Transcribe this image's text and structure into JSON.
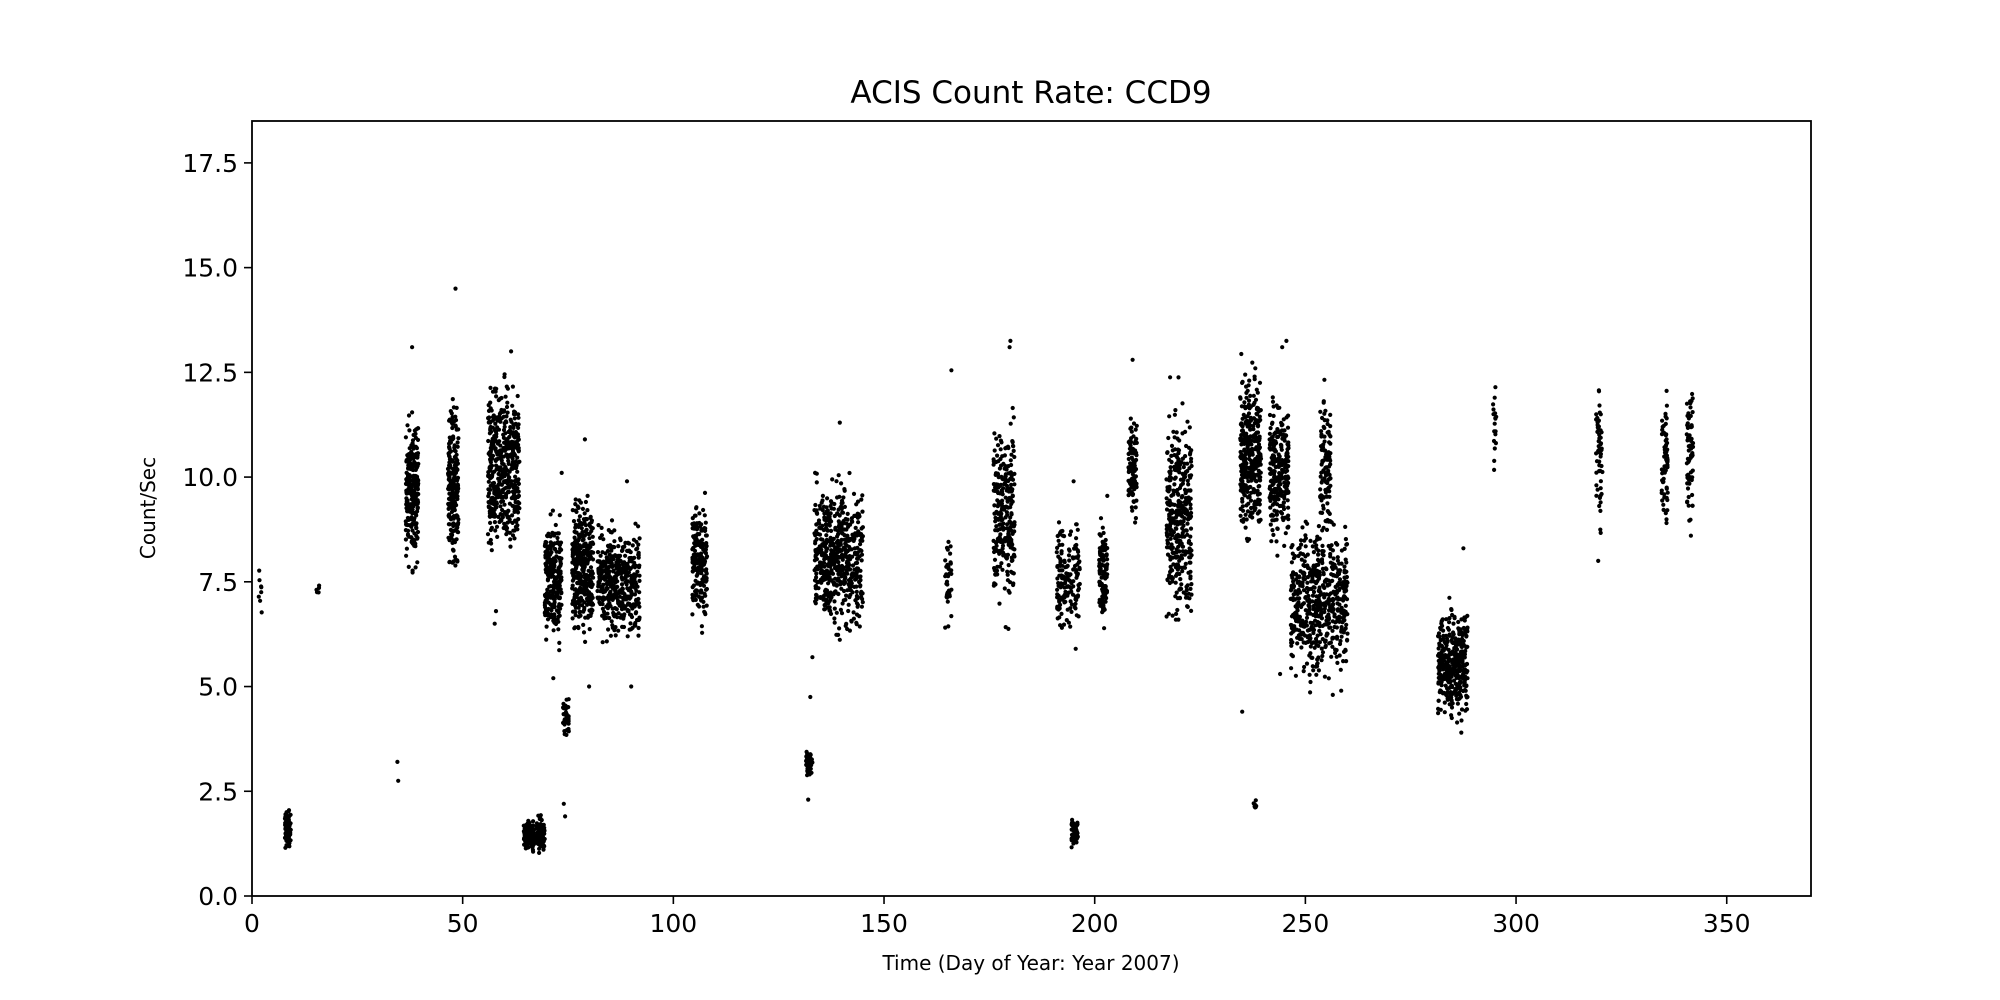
{
  "chart_data": {
    "type": "scatter",
    "title": "ACIS Count Rate: CCD9",
    "xlabel": "Time (Day of Year: Year 2007)",
    "ylabel": "Count/Sec",
    "xlim": [
      0,
      370
    ],
    "ylim": [
      0,
      18.5
    ],
    "xticks": [
      0,
      50,
      100,
      150,
      200,
      250,
      300,
      350
    ],
    "yticks": [
      0.0,
      2.5,
      5.0,
      7.5,
      10.0,
      12.5,
      15.0,
      17.5
    ],
    "xtick_labels": [
      "0",
      "50",
      "100",
      "150",
      "200",
      "250",
      "300",
      "350"
    ],
    "ytick_labels": [
      "0.0",
      "2.5",
      "5.0",
      "7.5",
      "10.0",
      "12.5",
      "15.0",
      "17.5"
    ],
    "grid": false,
    "marker_color": "#000000",
    "clusters": [
      {
        "x": [
          1.5,
          2.5
        ],
        "y": [
          6.1,
          8.1
        ],
        "n": 8
      },
      {
        "x": [
          7.8,
          9.2
        ],
        "y": [
          1.0,
          2.2
        ],
        "n": 90
      },
      {
        "x": [
          15.0,
          16.0
        ],
        "y": [
          7.2,
          7.5
        ],
        "n": 5
      },
      {
        "x": [
          36.5,
          39.5
        ],
        "y": [
          7.4,
          12.0
        ],
        "n": 230
      },
      {
        "x": [
          46.5,
          49.0
        ],
        "y": [
          7.3,
          12.2
        ],
        "n": 230
      },
      {
        "x": [
          56.0,
          63.5
        ],
        "y": [
          7.5,
          12.8
        ],
        "n": 480
      },
      {
        "x": [
          64.5,
          67.0
        ],
        "y": [
          0.9,
          2.0
        ],
        "n": 100
      },
      {
        "x": [
          67.5,
          69.5
        ],
        "y": [
          0.8,
          2.1
        ],
        "n": 80
      },
      {
        "x": [
          69.5,
          73.5
        ],
        "y": [
          5.6,
          9.6
        ],
        "n": 230
      },
      {
        "x": [
          73.8,
          75.2
        ],
        "y": [
          3.7,
          4.8
        ],
        "n": 40
      },
      {
        "x": [
          76.0,
          81.0
        ],
        "y": [
          5.8,
          10.0
        ],
        "n": 330
      },
      {
        "x": [
          82.0,
          92.0
        ],
        "y": [
          5.7,
          9.2
        ],
        "n": 420
      },
      {
        "x": [
          104.5,
          108.0
        ],
        "y": [
          6.0,
          10.0
        ],
        "n": 180
      },
      {
        "x": [
          131.5,
          133.0
        ],
        "y": [
          2.7,
          3.6
        ],
        "n": 60
      },
      {
        "x": [
          133.5,
          145.0
        ],
        "y": [
          5.8,
          10.4
        ],
        "n": 560
      },
      {
        "x": [
          164.5,
          166.0
        ],
        "y": [
          6.2,
          8.8
        ],
        "n": 35
      },
      {
        "x": [
          176.0,
          181.0
        ],
        "y": [
          6.2,
          12.0
        ],
        "n": 260
      },
      {
        "x": [
          191.0,
          196.5
        ],
        "y": [
          5.9,
          9.2
        ],
        "n": 160
      },
      {
        "x": [
          194.5,
          196.0
        ],
        "y": [
          1.0,
          2.1
        ],
        "n": 60
      },
      {
        "x": [
          201.0,
          203.0
        ],
        "y": [
          6.1,
          9.5
        ],
        "n": 110
      },
      {
        "x": [
          208.0,
          210.0
        ],
        "y": [
          8.4,
          12.0
        ],
        "n": 110
      },
      {
        "x": [
          217.0,
          223.0
        ],
        "y": [
          5.8,
          12.5
        ],
        "n": 360
      },
      {
        "x": [
          234.5,
          239.5
        ],
        "y": [
          8.0,
          13.2
        ],
        "n": 330
      },
      {
        "x": [
          237.5,
          238.5
        ],
        "y": [
          2.0,
          2.3
        ],
        "n": 8
      },
      {
        "x": [
          241.5,
          246.0
        ],
        "y": [
          7.9,
          12.2
        ],
        "n": 260
      },
      {
        "x": [
          246.5,
          260.0
        ],
        "y": [
          4.7,
          9.4
        ],
        "n": 560
      },
      {
        "x": [
          253.5,
          256.0
        ],
        "y": [
          8.0,
          12.6
        ],
        "n": 110
      },
      {
        "x": [
          281.5,
          288.5
        ],
        "y": [
          3.8,
          7.3
        ],
        "n": 380
      },
      {
        "x": [
          294.5,
          295.5
        ],
        "y": [
          9.4,
          12.8
        ],
        "n": 18
      },
      {
        "x": [
          319.0,
          320.5
        ],
        "y": [
          8.1,
          13.0
        ],
        "n": 55
      },
      {
        "x": [
          334.5,
          336.0
        ],
        "y": [
          8.4,
          12.4
        ],
        "n": 65
      },
      {
        "x": [
          340.5,
          342.0
        ],
        "y": [
          8.5,
          12.8
        ],
        "n": 65
      }
    ],
    "points": [
      [
        34.5,
        3.2
      ],
      [
        34.7,
        2.75
      ],
      [
        38.0,
        13.1
      ],
      [
        48.3,
        14.5
      ],
      [
        57.6,
        6.5
      ],
      [
        57.9,
        6.8
      ],
      [
        61.5,
        13.0
      ],
      [
        71.5,
        5.2
      ],
      [
        73.5,
        10.1
      ],
      [
        74.0,
        2.2
      ],
      [
        74.3,
        1.9
      ],
      [
        79.0,
        10.9
      ],
      [
        80.0,
        5.0
      ],
      [
        90.0,
        5.0
      ],
      [
        89.0,
        9.9
      ],
      [
        132.0,
        2.3
      ],
      [
        132.5,
        4.75
      ],
      [
        133.0,
        5.7
      ],
      [
        139.5,
        11.3
      ],
      [
        166.0,
        12.55
      ],
      [
        180.0,
        13.25
      ],
      [
        179.8,
        13.1
      ],
      [
        195.0,
        9.9
      ],
      [
        195.5,
        5.9
      ],
      [
        203.0,
        9.55
      ],
      [
        209.0,
        12.8
      ],
      [
        235.0,
        4.4
      ],
      [
        245.5,
        13.25
      ],
      [
        244.5,
        13.1
      ],
      [
        244.0,
        5.3
      ],
      [
        256.5,
        4.8
      ],
      [
        258.5,
        4.9
      ],
      [
        287.5,
        8.3
      ],
      [
        287.0,
        3.9
      ],
      [
        319.5,
        8.0
      ],
      [
        341.5,
        8.6
      ]
    ]
  }
}
